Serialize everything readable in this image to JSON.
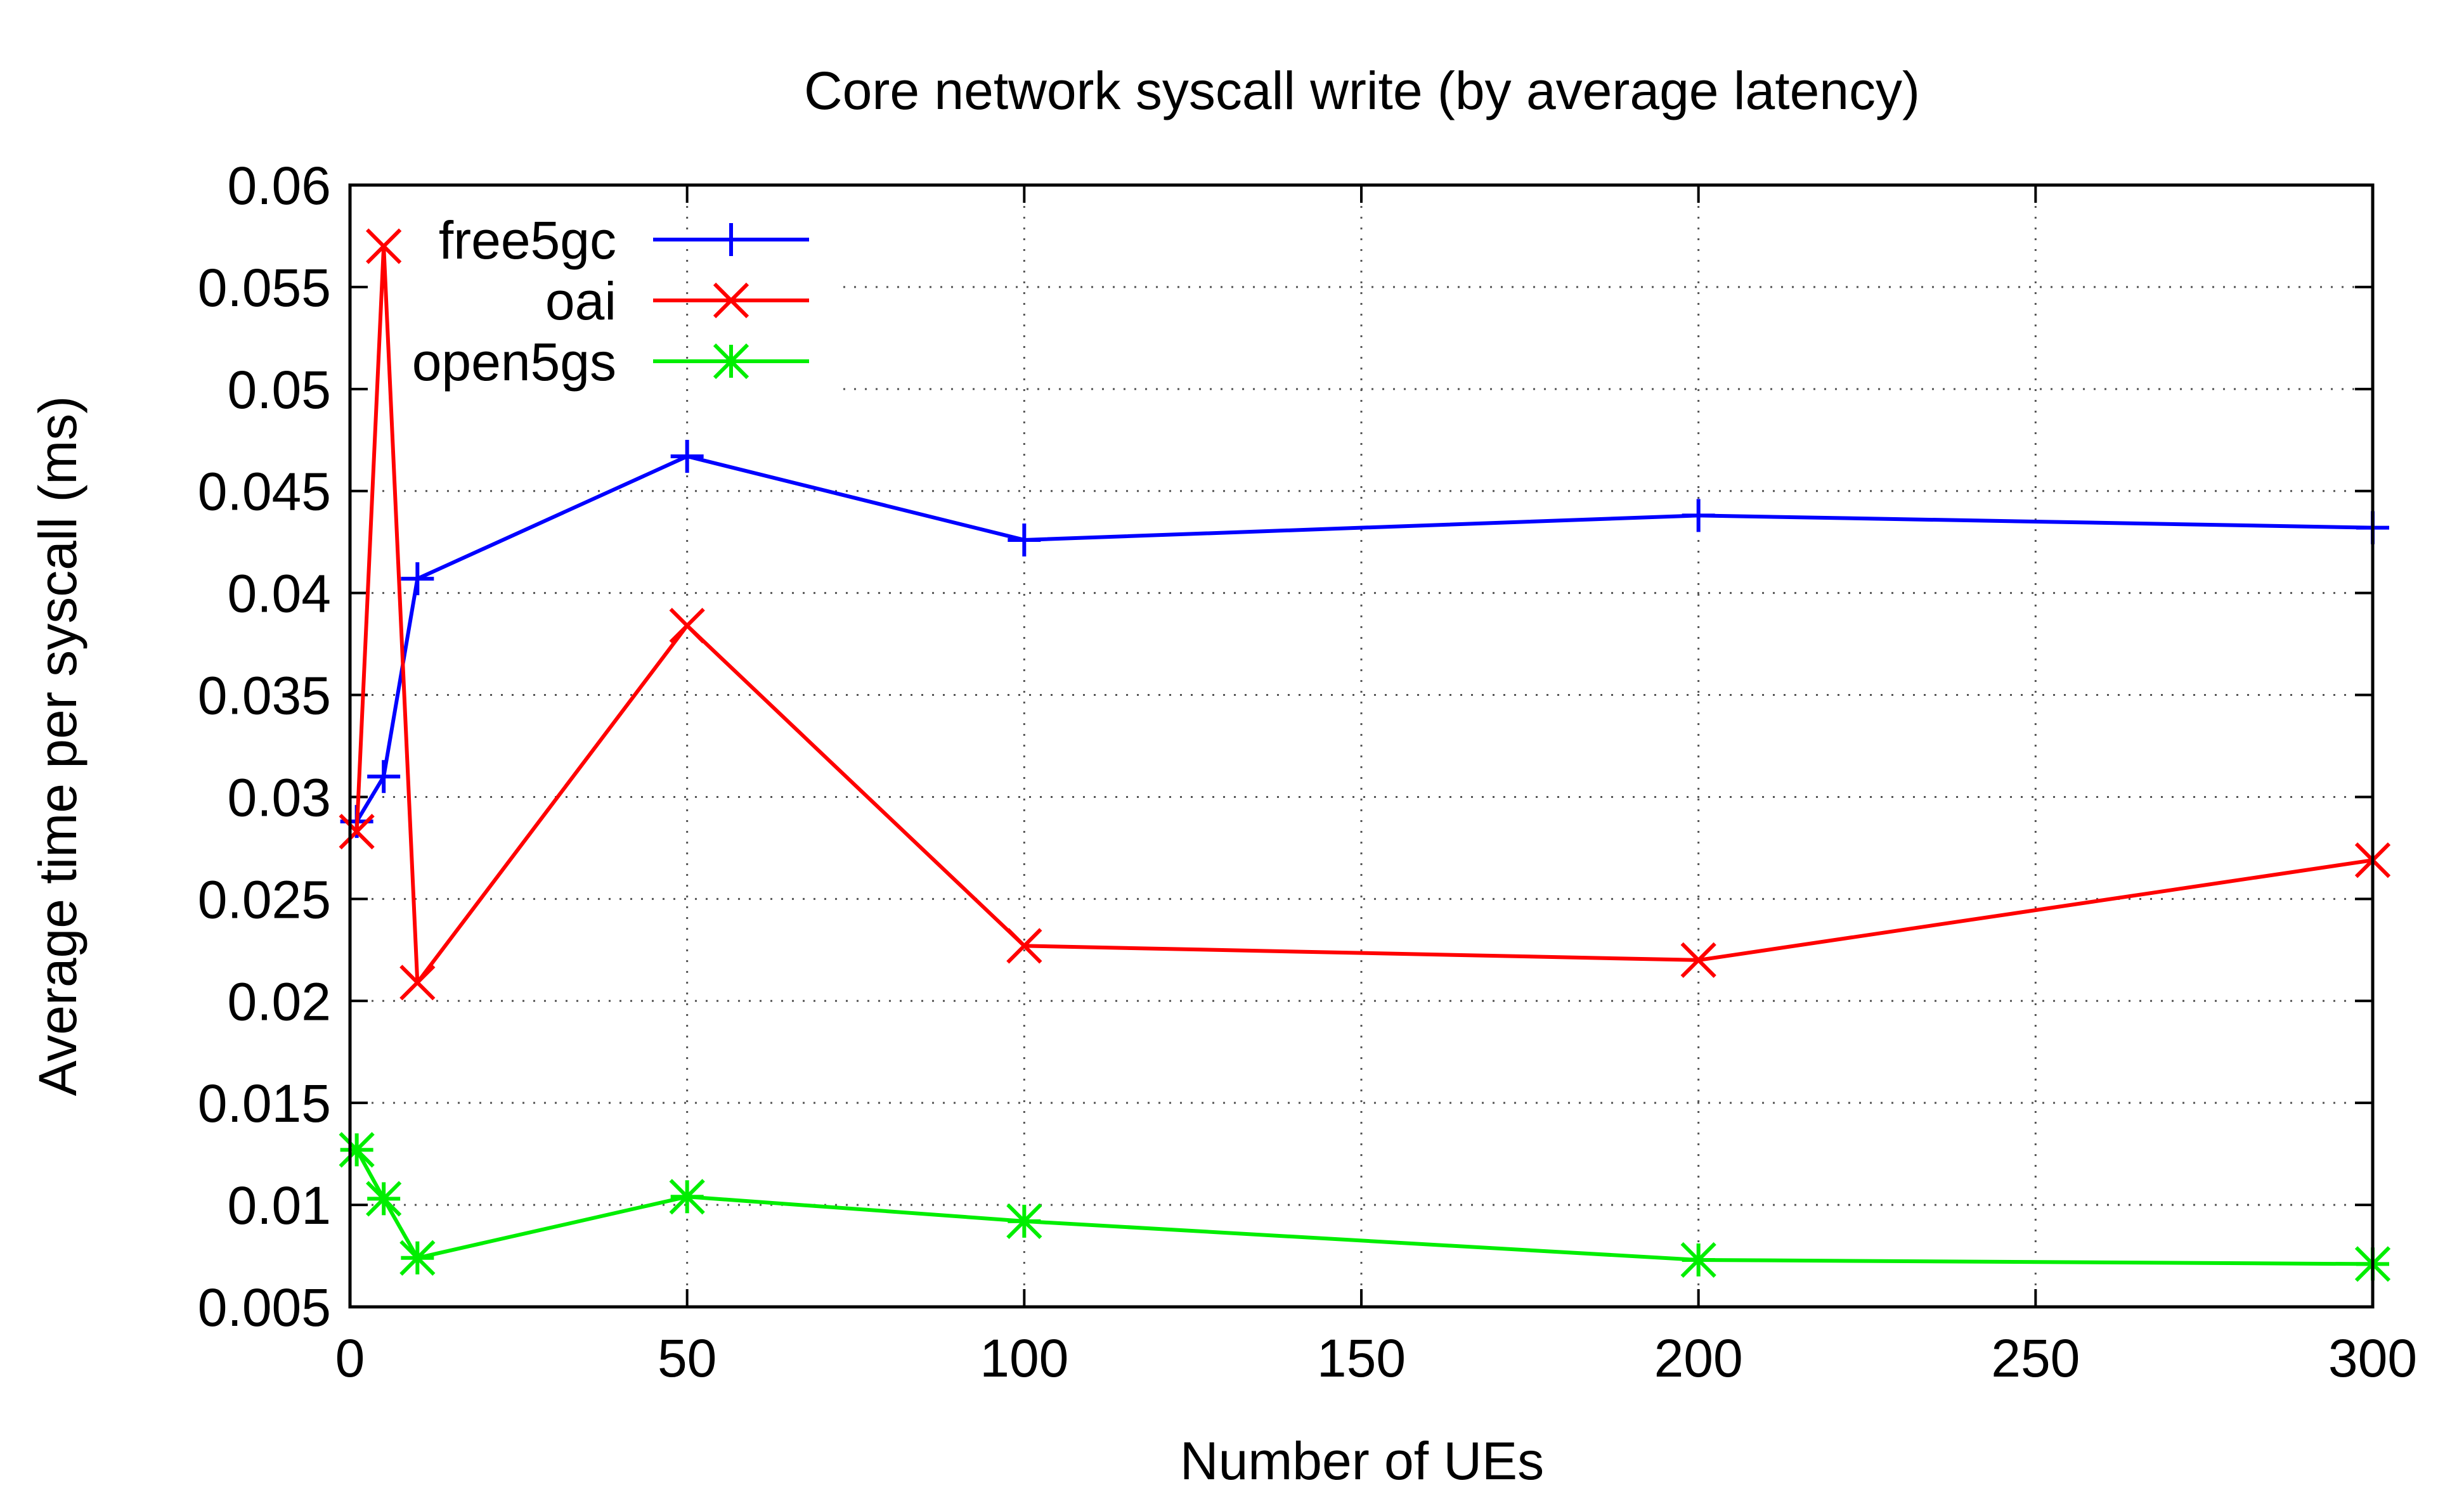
{
  "chart_data": {
    "type": "line",
    "title": "Core network syscall write (by average latency)",
    "xlabel": "Number of UEs",
    "ylabel": "Average time per syscall (ms)",
    "xlim": [
      0,
      300
    ],
    "ylim": [
      0.005,
      0.06
    ],
    "xticks": [
      0,
      50,
      100,
      150,
      200,
      250,
      300
    ],
    "yticks": [
      0.005,
      0.01,
      0.015,
      0.02,
      0.025,
      0.03,
      0.035,
      0.04,
      0.045,
      0.05,
      0.055,
      0.06
    ],
    "xtick_labels": [
      "0",
      "50",
      "100",
      "150",
      "200",
      "250",
      "300"
    ],
    "ytick_labels": [
      "0.005",
      "0.01",
      "0.015",
      "0.02",
      "0.025",
      "0.03",
      "0.035",
      "0.04",
      "0.045",
      "0.05",
      "0.055",
      "0.06"
    ],
    "grid": true,
    "legend_position": "top-left",
    "series": [
      {
        "name": "free5gc",
        "color": "#0000ff",
        "marker": "plus",
        "x": [
          1,
          5,
          10,
          50,
          100,
          200,
          300
        ],
        "y": [
          0.0288,
          0.031,
          0.0407,
          0.0467,
          0.0426,
          0.0438,
          0.0432
        ]
      },
      {
        "name": "oai",
        "color": "#ff0000",
        "marker": "cross",
        "x": [
          1,
          5,
          10,
          50,
          100,
          200,
          300
        ],
        "y": [
          0.0283,
          0.057,
          0.0209,
          0.0384,
          0.0227,
          0.022,
          0.0269
        ]
      },
      {
        "name": "open5gs",
        "color": "#00ee00",
        "marker": "star",
        "x": [
          1,
          5,
          10,
          50,
          100,
          200,
          300
        ],
        "y": [
          0.0127,
          0.0103,
          0.0074,
          0.0104,
          0.0092,
          0.0073,
          0.0071
        ]
      }
    ]
  }
}
